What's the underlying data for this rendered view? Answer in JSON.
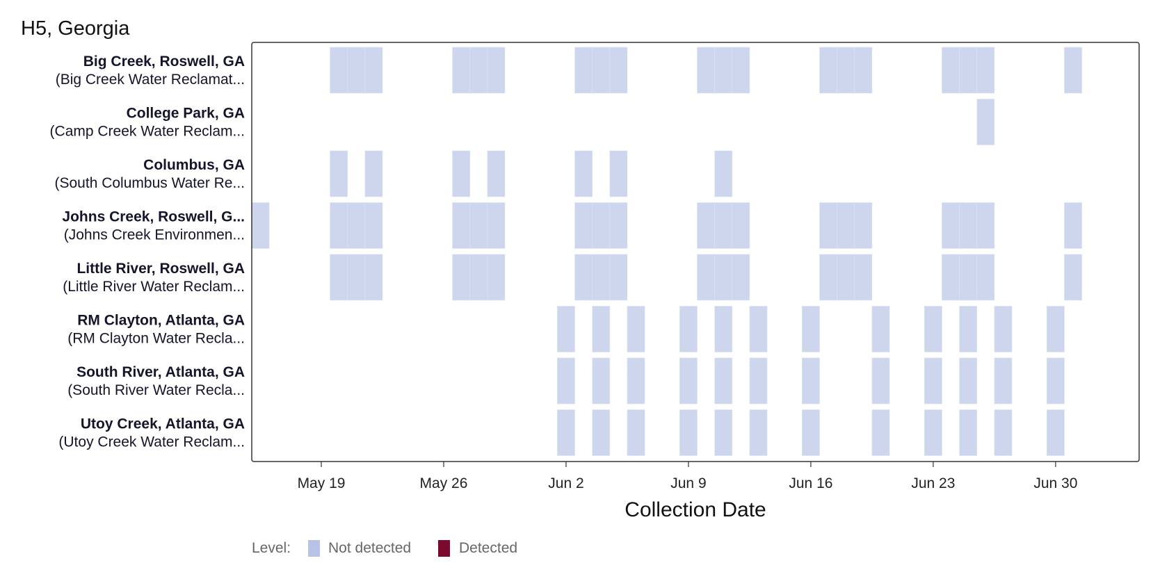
{
  "chart_data": {
    "type": "heatmap",
    "title": "H5, Georgia",
    "xlabel": "Collection Date",
    "x_ticks": [
      "May 19",
      "May 26",
      "Jun 2",
      "Jun 9",
      "Jun 16",
      "Jun 23",
      "Jun 30"
    ],
    "x_range": [
      "May 15",
      "Jul 5"
    ],
    "legend": {
      "title": "Level:",
      "placement": "bottom-left",
      "entries": [
        {
          "label": "Not detected",
          "color": "#b7c3e6"
        },
        {
          "label": "Detected",
          "color": "#7a0a2e"
        }
      ]
    },
    "fill_color": "#ced6ee",
    "rows": [
      {
        "site": "Big Creek, Roswell, GA",
        "plant": "(Big Creek Water Reclamat...",
        "not_detected": [
          "May 20",
          "May 21",
          "May 22",
          "May 27",
          "May 28",
          "May 29",
          "Jun 3",
          "Jun 4",
          "Jun 5",
          "Jun 10",
          "Jun 11",
          "Jun 12",
          "Jun 17",
          "Jun 18",
          "Jun 19",
          "Jun 24",
          "Jun 25",
          "Jun 26",
          "Jul 1"
        ]
      },
      {
        "site": "College Park, GA",
        "plant": "(Camp Creek Water Reclam...",
        "not_detected": [
          "Jun 26"
        ]
      },
      {
        "site": "Columbus, GA",
        "plant": "(South Columbus Water Re...",
        "not_detected": [
          "May 20",
          "May 22",
          "May 27",
          "May 29",
          "Jun 3",
          "Jun 5",
          "Jun 11"
        ]
      },
      {
        "site": "Johns Creek, Roswell, G...",
        "plant": "(Johns Creek Environmen...",
        "not_detected": [
          "May 15",
          "May 20",
          "May 21",
          "May 22",
          "May 27",
          "May 28",
          "May 29",
          "Jun 3",
          "Jun 4",
          "Jun 5",
          "Jun 10",
          "Jun 11",
          "Jun 12",
          "Jun 17",
          "Jun 18",
          "Jun 19",
          "Jun 24",
          "Jun 25",
          "Jun 26",
          "Jul 1"
        ]
      },
      {
        "site": "Little River, Roswell, GA",
        "plant": "(Little River Water Reclam...",
        "not_detected": [
          "May 20",
          "May 21",
          "May 22",
          "May 27",
          "May 28",
          "May 29",
          "Jun 3",
          "Jun 4",
          "Jun 5",
          "Jun 10",
          "Jun 11",
          "Jun 12",
          "Jun 17",
          "Jun 18",
          "Jun 19",
          "Jun 24",
          "Jun 25",
          "Jun 26",
          "Jul 1"
        ]
      },
      {
        "site": "RM Clayton, Atlanta, GA",
        "plant": "(RM Clayton Water Recla...",
        "not_detected": [
          "Jun 2",
          "Jun 4",
          "Jun 6",
          "Jun 9",
          "Jun 11",
          "Jun 13",
          "Jun 16",
          "Jun 20",
          "Jun 23",
          "Jun 25",
          "Jun 27",
          "Jun 30"
        ]
      },
      {
        "site": "South River, Atlanta, GA",
        "plant": "(South River Water Recla...",
        "not_detected": [
          "Jun 2",
          "Jun 4",
          "Jun 6",
          "Jun 9",
          "Jun 11",
          "Jun 13",
          "Jun 16",
          "Jun 20",
          "Jun 23",
          "Jun 25",
          "Jun 27",
          "Jun 30"
        ]
      },
      {
        "site": "Utoy Creek, Atlanta, GA",
        "plant": "(Utoy Creek Water Reclam...",
        "not_detected": [
          "Jun 2",
          "Jun 4",
          "Jun 6",
          "Jun 9",
          "Jun 11",
          "Jun 13",
          "Jun 16",
          "Jun 20",
          "Jun 23",
          "Jun 25",
          "Jun 27",
          "Jun 30"
        ]
      }
    ]
  }
}
